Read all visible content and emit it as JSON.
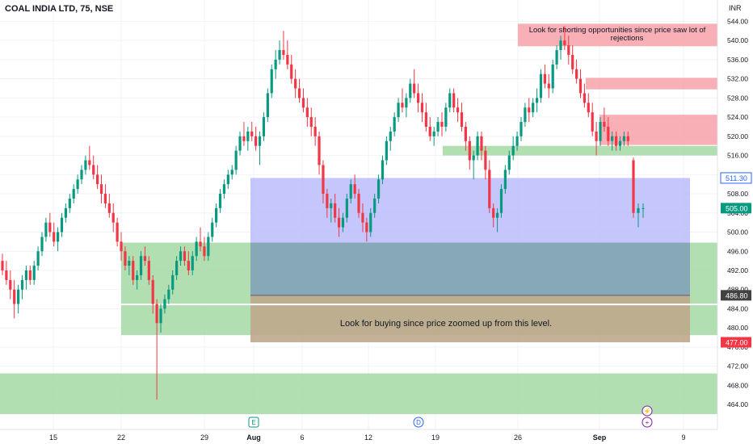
{
  "header": {
    "symbol_title": "COAL INDIA LTD, 75, NSE",
    "currency": "INR"
  },
  "colors": {
    "up": "#089981",
    "down": "#f23645",
    "zone_red": "#f7a1a8",
    "zone_green": "#a9dba8",
    "zone_blue": "#b6b8fb",
    "zone_overlap": "#87a8b6",
    "zone_brown": "#bfa88c",
    "label_blue": "#2962ff",
    "label_green": "#089981",
    "label_gray": "#424242",
    "label_red": "#f23645",
    "events": "#7b1fa2",
    "text": "#131722",
    "grid": "#f0f3fa"
  },
  "chart_data": {
    "type": "candlestick",
    "symbol": "COAL INDIA LTD",
    "interval": "75",
    "exchange": "NSE",
    "currency": "INR",
    "y_axis": {
      "ylim": [
        462,
        545
      ],
      "ticks": [
        "544.00",
        "540.00",
        "536.00",
        "532.00",
        "528.00",
        "524.00",
        "520.00",
        "516.00",
        "512.00",
        "508.00",
        "504.00",
        "500.00",
        "496.00",
        "492.00",
        "488.00",
        "484.00",
        "480.00",
        "476.00",
        "472.00",
        "468.00",
        "464.00"
      ]
    },
    "x_axis": {
      "ticks": [
        "15",
        "22",
        "29",
        "Aug",
        "6",
        "12",
        "19",
        "26",
        "Sep",
        "9"
      ]
    },
    "price_labels": [
      {
        "value": 511.3,
        "text": "511.30",
        "kind": "blue"
      },
      {
        "value": 505.0,
        "text": "505.00",
        "kind": "green"
      },
      {
        "value": 486.8,
        "text": "486.80",
        "kind": "gray"
      },
      {
        "value": 477.0,
        "text": "477.00",
        "kind": "red"
      }
    ],
    "annotations": [
      {
        "text": "Look for shorting opportunities since price saw lot of rejections",
        "near_price": 541
      },
      {
        "text": "Look for buying since price zoomed up from this level.",
        "near_price": 481
      }
    ],
    "events": [
      {
        "glyph": "E",
        "near": "Jul 31"
      },
      {
        "glyph": "D",
        "near": "Aug 16"
      },
      {
        "glyph": "⚡",
        "near": "Sep 5"
      },
      {
        "glyph": "+",
        "near": "Sep 5"
      }
    ],
    "zones": [
      {
        "kind": "red",
        "from": "Aug 26",
        "to": "end",
        "low": 538.8,
        "high": 543.5
      },
      {
        "kind": "red",
        "from": "Aug 30",
        "to": "end",
        "low": 529.8,
        "high": 532.2
      },
      {
        "kind": "red",
        "from": "Sep 1",
        "to": "end",
        "low": 518.2,
        "high": 524.5
      },
      {
        "kind": "green",
        "from": "Aug 19",
        "to": "end",
        "low": 516.0,
        "high": 518.0
      },
      {
        "kind": "blue",
        "from": "Jul 31",
        "to": "Sep 10",
        "low": 497.8,
        "high": 511.3
      },
      {
        "kind": "green",
        "from": "Jul 22",
        "to": "end",
        "low": 478.5,
        "high": 497.8
      },
      {
        "kind": "brown",
        "from": "Jul 31",
        "to": "Sep 10",
        "low": 477.0,
        "high": 486.8
      },
      {
        "kind": "green",
        "from": "start",
        "to": "end",
        "low": 462.0,
        "high": 470.5
      }
    ],
    "candles_ohlc": [
      [
        494,
        495.5,
        491,
        492
      ],
      [
        492,
        494,
        489,
        490
      ],
      [
        490,
        492,
        486,
        488
      ],
      [
        488,
        490,
        482,
        485
      ],
      [
        485,
        489,
        483,
        488
      ],
      [
        488,
        491,
        486,
        490
      ],
      [
        490,
        493,
        488,
        492
      ],
      [
        492,
        493,
        489,
        490
      ],
      [
        490,
        494,
        489,
        493
      ],
      [
        493,
        497,
        492,
        496
      ],
      [
        496,
        500,
        495,
        499
      ],
      [
        499,
        503,
        498,
        502
      ],
      [
        502,
        504,
        499,
        500
      ],
      [
        500,
        502,
        497,
        498
      ],
      [
        498,
        501,
        496,
        500
      ],
      [
        500,
        504,
        499,
        503
      ],
      [
        503,
        506,
        502,
        505
      ],
      [
        505,
        508,
        504,
        507
      ],
      [
        507,
        510,
        506,
        509
      ],
      [
        509,
        512,
        508,
        511
      ],
      [
        511,
        514,
        510,
        513
      ],
      [
        513,
        516,
        512,
        515
      ],
      [
        515,
        518,
        513,
        514
      ],
      [
        514,
        516,
        511,
        512
      ],
      [
        512,
        514,
        509,
        510
      ],
      [
        510,
        512,
        506,
        508
      ],
      [
        508,
        510,
        505,
        506
      ],
      [
        506,
        508,
        503,
        504
      ],
      [
        504,
        506,
        500,
        502
      ],
      [
        502,
        503,
        497,
        498
      ],
      [
        498,
        500,
        494,
        496
      ],
      [
        496,
        497,
        492,
        493
      ],
      [
        493,
        495,
        491,
        494
      ],
      [
        494,
        495,
        489,
        490
      ],
      [
        490,
        492,
        488,
        491
      ],
      [
        491,
        496,
        490,
        495
      ],
      [
        495,
        497,
        493,
        494
      ],
      [
        494,
        495,
        489,
        490
      ],
      [
        490,
        491,
        483,
        485
      ],
      [
        485,
        486,
        465,
        481
      ],
      [
        481,
        485,
        479,
        484
      ],
      [
        484,
        487,
        483,
        486
      ],
      [
        486,
        489,
        485,
        488
      ],
      [
        488,
        492,
        487,
        491
      ],
      [
        491,
        495,
        490,
        494
      ],
      [
        494,
        497,
        493,
        496
      ],
      [
        496,
        497,
        493,
        494
      ],
      [
        494,
        496,
        491,
        492
      ],
      [
        492,
        496,
        491,
        495
      ],
      [
        495,
        499,
        494,
        498
      ],
      [
        498,
        501,
        496,
        497
      ],
      [
        497,
        499,
        494,
        495
      ],
      [
        495,
        500,
        494,
        499
      ],
      [
        499,
        503,
        498,
        502
      ],
      [
        502,
        506,
        501,
        505
      ],
      [
        505,
        509,
        504,
        508
      ],
      [
        508,
        511,
        507,
        510
      ],
      [
        510,
        513,
        509,
        512
      ],
      [
        512,
        514,
        511,
        513
      ],
      [
        513,
        518,
        512,
        517
      ],
      [
        517,
        521,
        516,
        520
      ],
      [
        520,
        523,
        518,
        519
      ],
      [
        519,
        522,
        517,
        521
      ],
      [
        521,
        523,
        519,
        520
      ],
      [
        520,
        522,
        517,
        518
      ],
      [
        518,
        521,
        514,
        520
      ],
      [
        520,
        525,
        519,
        524
      ],
      [
        524,
        530,
        523,
        529
      ],
      [
        529,
        535,
        528,
        534
      ],
      [
        534,
        538,
        532,
        536
      ],
      [
        536,
        540,
        535,
        538
      ],
      [
        538,
        542,
        536,
        537
      ],
      [
        537,
        540,
        534,
        535
      ],
      [
        535,
        537,
        531,
        532
      ],
      [
        532,
        534,
        528,
        530
      ],
      [
        530,
        532,
        527,
        528
      ],
      [
        528,
        530,
        525,
        526
      ],
      [
        526,
        528,
        522,
        524
      ],
      [
        524,
        526,
        520,
        522
      ],
      [
        522,
        524,
        518,
        520
      ],
      [
        520,
        521,
        512,
        514
      ],
      [
        514,
        515,
        506,
        508
      ],
      [
        508,
        509,
        503,
        505
      ],
      [
        505,
        507,
        502,
        506
      ],
      [
        506,
        508,
        502,
        503
      ],
      [
        503,
        505,
        499,
        501
      ],
      [
        501,
        504,
        500,
        503
      ],
      [
        503,
        508,
        502,
        507
      ],
      [
        507,
        511,
        506,
        510
      ],
      [
        510,
        512,
        507,
        508
      ],
      [
        508,
        509,
        503,
        504
      ],
      [
        504,
        506,
        500,
        502
      ],
      [
        502,
        503,
        498,
        500
      ],
      [
        500,
        505,
        499,
        504
      ],
      [
        504,
        508,
        503,
        507
      ],
      [
        507,
        512,
        506,
        511
      ],
      [
        511,
        516,
        510,
        515
      ],
      [
        515,
        520,
        514,
        519
      ],
      [
        519,
        522,
        517,
        521
      ],
      [
        521,
        525,
        520,
        524
      ],
      [
        524,
        528,
        523,
        527
      ],
      [
        527,
        530,
        525,
        526
      ],
      [
        526,
        529,
        524,
        528
      ],
      [
        528,
        532,
        527,
        531
      ],
      [
        531,
        534,
        528,
        529
      ],
      [
        529,
        531,
        525,
        527
      ],
      [
        527,
        529,
        523,
        525
      ],
      [
        525,
        527,
        521,
        522
      ],
      [
        522,
        524,
        519,
        520
      ],
      [
        520,
        522,
        518,
        521
      ],
      [
        521,
        524,
        520,
        523
      ],
      [
        523,
        525,
        520,
        522
      ],
      [
        522,
        527,
        521,
        526
      ],
      [
        526,
        530,
        525,
        529
      ],
      [
        529,
        530,
        525,
        526
      ],
      [
        526,
        528,
        523,
        525
      ],
      [
        525,
        527,
        521,
        522
      ],
      [
        522,
        523,
        517,
        519
      ],
      [
        519,
        520,
        513,
        515
      ],
      [
        515,
        517,
        511,
        516
      ],
      [
        516,
        521,
        515,
        520
      ],
      [
        520,
        521,
        515,
        517
      ],
      [
        517,
        518,
        511,
        513
      ],
      [
        513,
        515,
        504,
        505
      ],
      [
        505,
        506,
        501,
        503
      ],
      [
        503,
        505,
        500,
        504
      ],
      [
        504,
        510,
        503,
        509
      ],
      [
        509,
        514,
        508,
        513
      ],
      [
        513,
        517,
        512,
        516
      ],
      [
        516,
        520,
        515,
        518
      ],
      [
        518,
        521,
        517,
        520
      ],
      [
        520,
        524,
        519,
        523
      ],
      [
        523,
        527,
        522,
        526
      ],
      [
        526,
        528,
        523,
        525
      ],
      [
        525,
        528,
        524,
        527
      ],
      [
        527,
        530,
        525,
        528
      ],
      [
        528,
        534,
        527,
        533
      ],
      [
        533,
        535,
        530,
        531
      ],
      [
        531,
        533,
        528,
        530
      ],
      [
        530,
        536,
        529,
        535
      ],
      [
        535,
        539,
        534,
        538
      ],
      [
        538,
        541,
        536,
        540
      ],
      [
        540,
        543,
        538,
        539
      ],
      [
        539,
        541,
        535,
        537
      ],
      [
        537,
        539,
        533,
        534
      ],
      [
        534,
        536,
        531,
        532
      ],
      [
        532,
        534,
        528,
        529
      ],
      [
        529,
        531,
        526,
        527
      ],
      [
        527,
        529,
        524,
        525
      ],
      [
        525,
        527,
        520,
        521
      ],
      [
        521,
        523,
        516,
        519
      ],
      [
        519,
        524,
        518,
        523
      ],
      [
        523,
        526,
        521,
        522
      ],
      [
        522,
        524,
        518,
        519
      ],
      [
        519,
        521,
        517,
        520
      ],
      [
        520,
        521,
        517,
        518
      ],
      [
        518,
        520,
        517,
        519
      ],
      [
        519,
        521,
        518,
        520
      ],
      [
        520,
        521,
        518,
        519
      ],
      [
        515,
        515.5,
        503,
        504
      ],
      [
        504,
        506,
        501,
        505
      ],
      [
        505,
        506,
        503,
        505
      ]
    ]
  }
}
